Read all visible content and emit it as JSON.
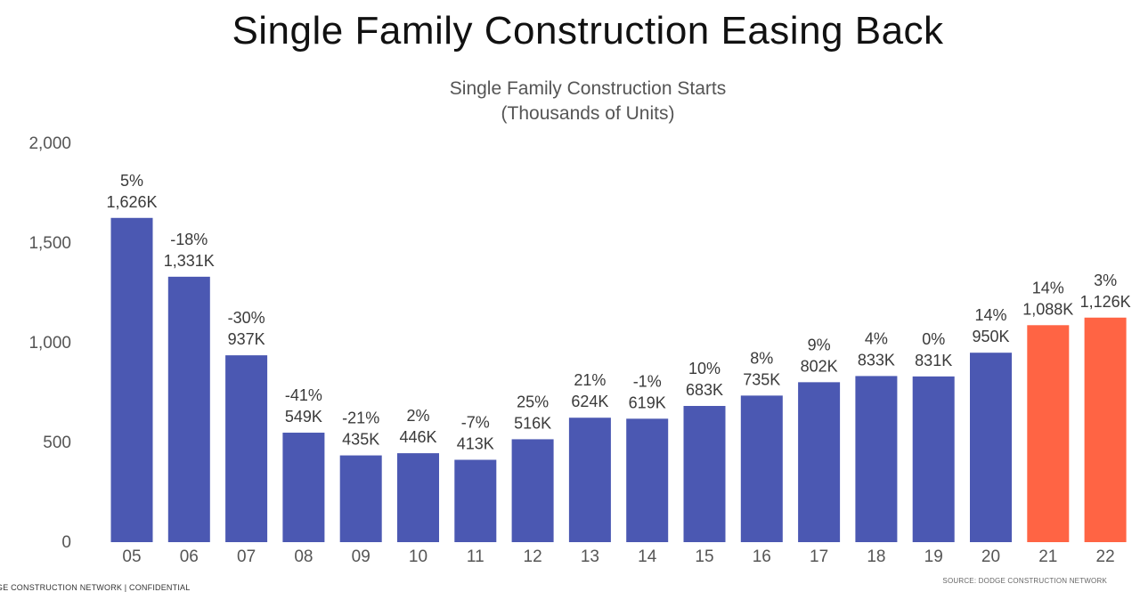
{
  "slide": {
    "title": "Single Family Construction Easing Back",
    "footer_left": "GE CONSTRUCTION NETWORK | CONFIDENTIAL",
    "footer_right": "SOURCE: DODGE CONSTRUCTION NETWORK"
  },
  "colors": {
    "actual": "#4B58B2",
    "forecast": "#FF6444"
  },
  "chart_data": {
    "type": "bar",
    "title": "Single Family Construction Starts",
    "subtitle": "(Thousands of Units)",
    "xlabel": "",
    "ylabel": "",
    "ylim": [
      0,
      2000
    ],
    "yticks": [
      "2,000",
      "1,500",
      "1,000",
      "500",
      "0"
    ],
    "ytick_values": [
      2000,
      1500,
      1000,
      500,
      0
    ],
    "grid": false,
    "categories": [
      "05",
      "06",
      "07",
      "08",
      "09",
      "10",
      "11",
      "12",
      "13",
      "14",
      "15",
      "16",
      "17",
      "18",
      "19",
      "20",
      "21",
      "22"
    ],
    "values": [
      1626,
      1331,
      937,
      549,
      435,
      446,
      413,
      516,
      624,
      619,
      683,
      735,
      802,
      833,
      831,
      950,
      1088,
      1126
    ],
    "value_labels": [
      "1,626K",
      "1,331K",
      "937K",
      "549K",
      "435K",
      "446K",
      "413K",
      "516K",
      "624K",
      "619K",
      "683K",
      "735K",
      "802K",
      "833K",
      "831K",
      "950K",
      "1,088K",
      "1,126K"
    ],
    "pct_labels": [
      "5%",
      "-18%",
      "-30%",
      "-41%",
      "-21%",
      "2%",
      "-7%",
      "25%",
      "21%",
      "-1%",
      "10%",
      "8%",
      "9%",
      "4%",
      "0%",
      "14%",
      "14%",
      "3%"
    ],
    "forecast": [
      false,
      false,
      false,
      false,
      false,
      false,
      false,
      false,
      false,
      false,
      false,
      false,
      false,
      false,
      false,
      false,
      true,
      true
    ]
  }
}
